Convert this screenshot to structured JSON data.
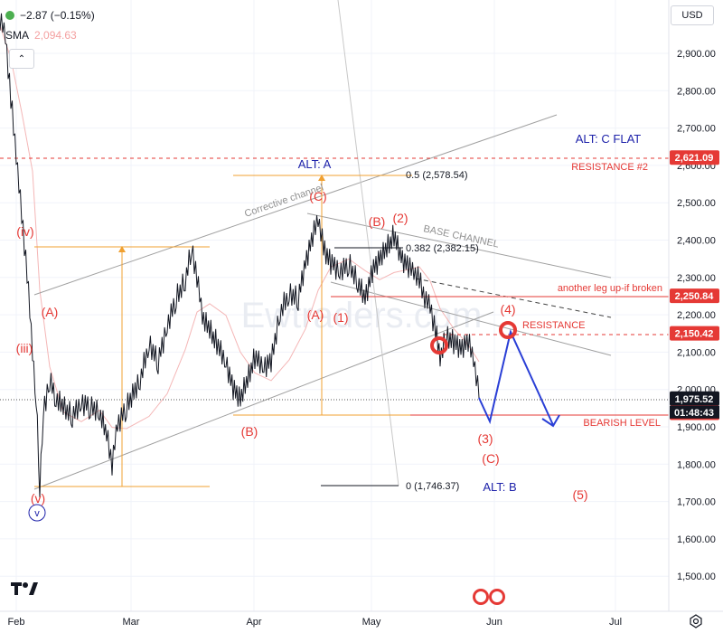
{
  "legend": {
    "change": "−2.87 (−0.15%)",
    "sma_label": "SMA",
    "sma_value": "2,094.63"
  },
  "currency": "USD",
  "watermark": "Ewtraders.com",
  "colors": {
    "price": "#131722",
    "wave_red": "#e53935",
    "wave_blue": "#1e22aa",
    "fib_orange": "#f0a030",
    "channel_gray": "#a0a0a0",
    "sma": "#f4b6b6",
    "level_red": "#e53935"
  },
  "chart_data": {
    "type": "line",
    "x_axis": {
      "tick_labels": [
        "Feb",
        "Mar",
        "Apr",
        "May",
        "Jun",
        "Jul"
      ]
    },
    "y_axis": {
      "range": [
        1420,
        3010
      ],
      "tick_labels": [
        "2,900.00",
        "2,800.00",
        "2,700.00",
        "2,600.00",
        "2,500.00",
        "2,400.00",
        "2,300.00",
        "2,200.00",
        "2,100.00",
        "2,000.00",
        "1,900.00",
        "1,800.00",
        "1,700.00",
        "1,600.00",
        "1,500.00"
      ]
    },
    "price_boxes": [
      {
        "value": 2621.09,
        "label": "2,621.09",
        "color": "#e53935"
      },
      {
        "value": 2250.84,
        "label": "2,250.84",
        "color": "#e53935"
      },
      {
        "value": 2150.42,
        "label": "2,150.42",
        "color": "#e53935"
      },
      {
        "value": 1975.52,
        "label": "1,975.52",
        "color": "#131722"
      },
      {
        "value": 1937.57,
        "label": "1,937.57",
        "color": "#e53935"
      }
    ],
    "countdown": "01:48:43",
    "fib_levels": [
      {
        "label": "0.5 (2,578.54)",
        "value": 2578.54
      },
      {
        "label": "0.382 (2,382.15)",
        "value": 2382.15
      },
      {
        "label": "0 (1,746.37)",
        "value": 1746.37
      }
    ],
    "wave_labels_red": [
      "(iv)",
      "(A)",
      "(iii)",
      "(v)",
      "(B)",
      "(C)",
      "(B)",
      "(2)",
      "(A)",
      "(1)",
      "(4)",
      "(3)",
      "(C)",
      "(5)"
    ],
    "wave_labels_blue": [
      "v",
      "ALT: A",
      "ALT: C FLAT",
      "ALT: B"
    ],
    "annotations": [
      "RESISTANCE #2",
      "another leg up-if broken",
      "RESISTANCE",
      "BEARISH LEVEL",
      "Corrective channel",
      "BASE CHANNEL"
    ]
  }
}
